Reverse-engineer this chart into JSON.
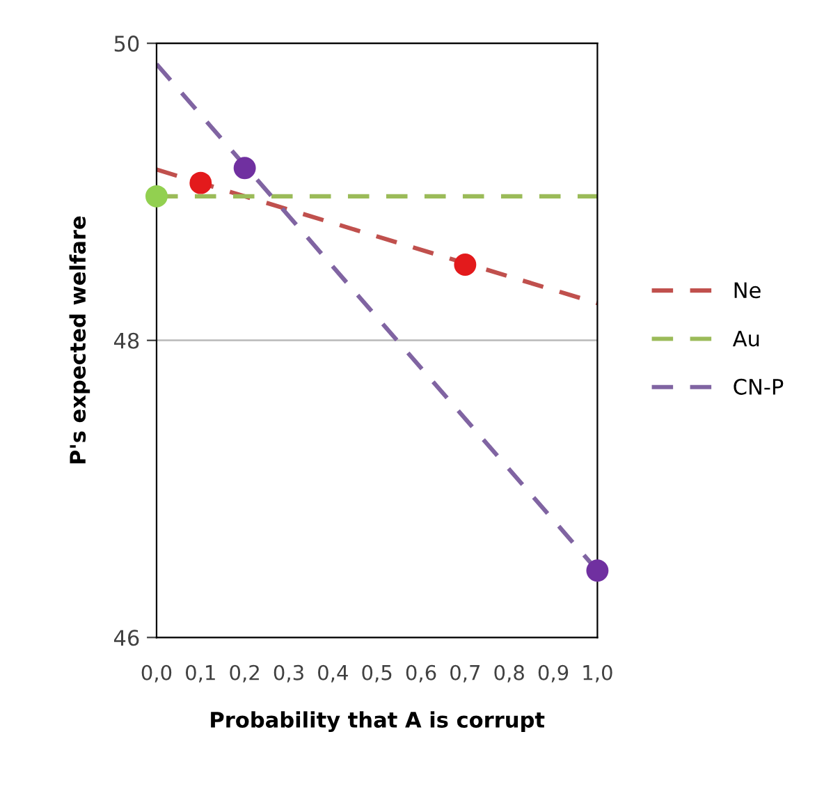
{
  "chart_data": {
    "type": "line",
    "xlabel": "Probability that A is corrupt",
    "ylabel": "P's expected welfare",
    "xlim": [
      0,
      1
    ],
    "ylim": [
      46,
      50
    ],
    "yticks": [
      46,
      48,
      50
    ],
    "xticks": [
      {
        "value": 0,
        "label": "0,0"
      },
      {
        "value": 0.1,
        "label": "0,1"
      },
      {
        "value": 0.2,
        "label": "0,2"
      },
      {
        "value": 0.3,
        "label": "0,3"
      },
      {
        "value": 0.4,
        "label": "0,4"
      },
      {
        "value": 0.5,
        "label": "0,5"
      },
      {
        "value": 0.6,
        "label": "0,6"
      },
      {
        "value": 0.7,
        "label": "0,7"
      },
      {
        "value": 0.8,
        "label": "0,8"
      },
      {
        "value": 0.9,
        "label": "0,9"
      },
      {
        "value": 1,
        "label": "1,0"
      }
    ],
    "grid": "y",
    "legend": "right",
    "line_style": "dashed",
    "marker": "none",
    "series": [
      {
        "name": "Ne",
        "color": "#c0504d",
        "x": [
          0,
          1
        ],
        "values": [
          49.15,
          48.25
        ]
      },
      {
        "name": "Au",
        "color": "#9bbb59",
        "x": [
          0,
          1
        ],
        "values": [
          48.97,
          48.97
        ]
      },
      {
        "name": "CN-P",
        "color": "#8064a2",
        "x": [
          0,
          1
        ],
        "values": [
          49.86,
          46.45
        ]
      },
      {
        "type": "scatter",
        "marker": "circle",
        "color": "#e31a1c",
        "x": [
          0.1,
          0.7
        ],
        "values": [
          49.06,
          48.51
        ]
      },
      {
        "type": "scatter",
        "marker": "circle",
        "color": "#92d050",
        "x": [
          0
        ],
        "values": [
          48.97
        ]
      },
      {
        "type": "scatter",
        "marker": "circle",
        "color": "#7030a0",
        "x": [
          0.2,
          1
        ],
        "values": [
          49.16,
          46.45
        ]
      }
    ]
  }
}
